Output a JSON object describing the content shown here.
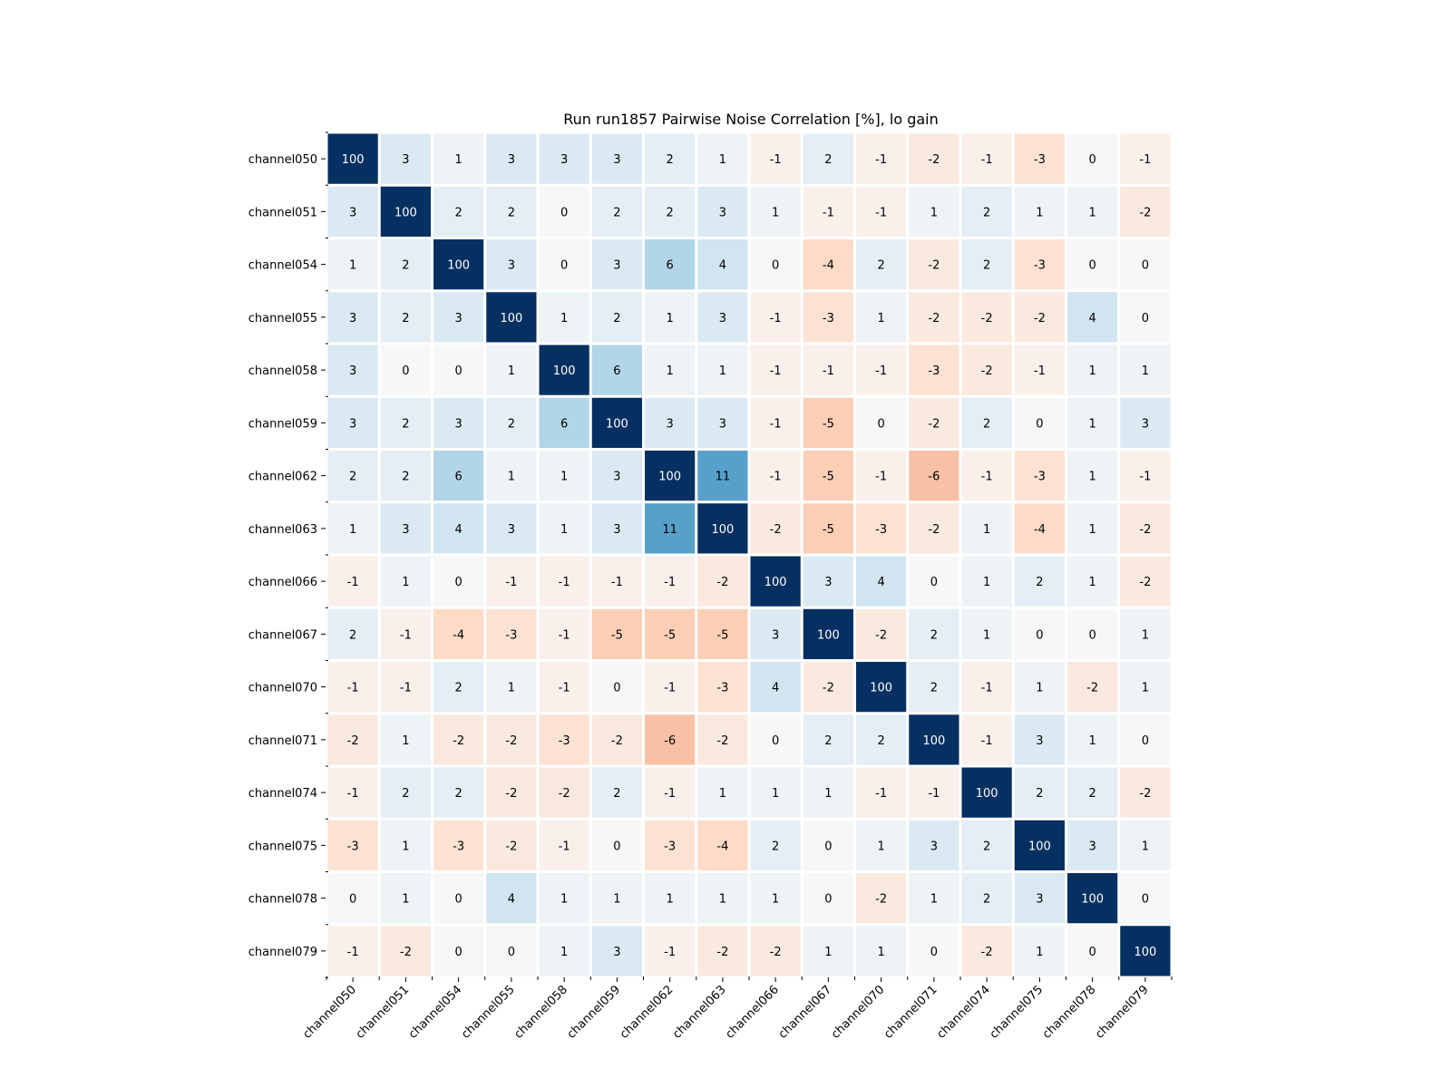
{
  "chart_data": {
    "type": "heatmap",
    "title": "Run run1857 Pairwise Noise Correlation [%], lo gain",
    "xlabel": "",
    "ylabel": "",
    "x_categories": [
      "channel050",
      "channel051",
      "channel054",
      "channel055",
      "channel058",
      "channel059",
      "channel062",
      "channel063",
      "channel066",
      "channel067",
      "channel070",
      "channel071",
      "channel074",
      "channel075",
      "channel078",
      "channel079"
    ],
    "y_categories": [
      "channel050",
      "channel051",
      "channel054",
      "channel055",
      "channel058",
      "channel059",
      "channel062",
      "channel063",
      "channel066",
      "channel067",
      "channel070",
      "channel071",
      "channel074",
      "channel075",
      "channel078",
      "channel079"
    ],
    "values": [
      [
        100,
        3,
        1,
        3,
        3,
        3,
        2,
        1,
        -1,
        2,
        -1,
        -2,
        -1,
        -3,
        0,
        -1
      ],
      [
        3,
        100,
        2,
        2,
        0,
        2,
        2,
        3,
        1,
        -1,
        -1,
        1,
        2,
        1,
        1,
        -2
      ],
      [
        1,
        2,
        100,
        3,
        0,
        3,
        6,
        4,
        0,
        -4,
        2,
        -2,
        2,
        -3,
        0,
        0
      ],
      [
        3,
        2,
        3,
        100,
        1,
        2,
        1,
        3,
        -1,
        -3,
        1,
        -2,
        -2,
        -2,
        4,
        0
      ],
      [
        3,
        0,
        0,
        1,
        100,
        6,
        1,
        1,
        -1,
        -1,
        -1,
        -3,
        -2,
        -1,
        1,
        1
      ],
      [
        3,
        2,
        3,
        2,
        6,
        100,
        3,
        3,
        -1,
        -5,
        0,
        -2,
        2,
        0,
        1,
        3
      ],
      [
        2,
        2,
        6,
        1,
        1,
        3,
        100,
        11,
        -1,
        -5,
        -1,
        -6,
        -1,
        -3,
        1,
        -1
      ],
      [
        1,
        3,
        4,
        3,
        1,
        3,
        11,
        100,
        -2,
        -5,
        -3,
        -2,
        1,
        -4,
        1,
        -2
      ],
      [
        -1,
        1,
        0,
        -1,
        -1,
        -1,
        -1,
        -2,
        100,
        3,
        4,
        0,
        1,
        2,
        1,
        -2
      ],
      [
        2,
        -1,
        -4,
        -3,
        -1,
        -5,
        -5,
        -5,
        3,
        100,
        -2,
        2,
        1,
        0,
        0,
        1
      ],
      [
        -1,
        -1,
        2,
        1,
        -1,
        0,
        -1,
        -3,
        4,
        -2,
        100,
        2,
        -1,
        1,
        -2,
        1
      ],
      [
        -2,
        1,
        -2,
        -2,
        -3,
        -2,
        -6,
        -2,
        0,
        2,
        2,
        100,
        -1,
        3,
        1,
        0
      ],
      [
        -1,
        2,
        2,
        -2,
        -2,
        2,
        -1,
        1,
        1,
        1,
        -1,
        -1,
        100,
        2,
        2,
        -2
      ],
      [
        -3,
        1,
        -3,
        -2,
        -1,
        0,
        -3,
        -4,
        2,
        0,
        1,
        3,
        2,
        100,
        3,
        1
      ],
      [
        0,
        1,
        0,
        4,
        1,
        1,
        1,
        1,
        1,
        0,
        -2,
        1,
        2,
        3,
        100,
        0
      ],
      [
        -1,
        -2,
        0,
        0,
        1,
        3,
        -1,
        -2,
        -2,
        1,
        1,
        0,
        -2,
        1,
        0,
        100
      ]
    ],
    "color_scale": "diverging blue-red, centered at 0",
    "colors": {
      "positive_max": "#053061",
      "neutral": "#f7f7f7",
      "negative": "#f4a582",
      "cell_border": "#ffffff"
    },
    "legend": "none",
    "grid": false
  }
}
